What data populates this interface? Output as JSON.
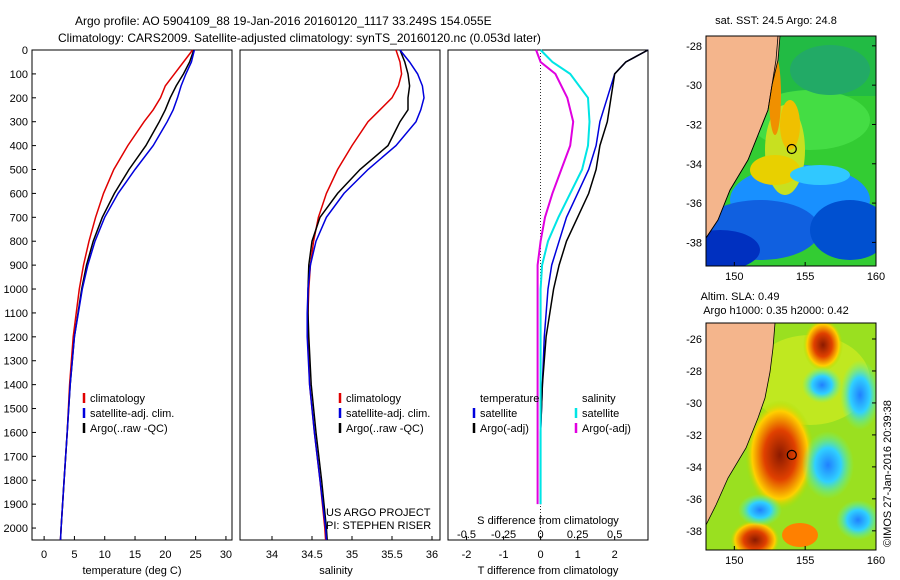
{
  "header": {
    "line1": "Argo profile: AO 5904109_88 19-Jan-2016 20160120_1117 33.249S 154.055E",
    "line2": "Climatology: CARS2009. Satellite-adjusted climatology: synTS_20160120.nc (0.053d later)"
  },
  "colors": {
    "climatology": "#e00000",
    "satellite": "#0000dd",
    "argo": "#000000",
    "s_satellite": "#00e5e5",
    "s_argo": "#e000e0",
    "land": "#f4b58c"
  },
  "chart_data": [
    {
      "type": "line",
      "xlabel": "temperature (deg C)",
      "xlim": [
        -2,
        31
      ],
      "ylim": [
        2050,
        0
      ],
      "xticks": [
        "0",
        "5",
        "10",
        "15",
        "20",
        "25",
        "30"
      ],
      "yticks": [
        "0",
        "100",
        "200",
        "300",
        "400",
        "500",
        "600",
        "700",
        "800",
        "900",
        "1000",
        "1100",
        "1200",
        "1300",
        "1400",
        "1500",
        "1600",
        "1700",
        "1800",
        "1900",
        "2000"
      ],
      "legend": [
        "climatology",
        "satellite-adj. clim.",
        "Argo(..raw -QC)"
      ],
      "series": [
        {
          "name": "climatology",
          "depth": [
            0,
            50,
            100,
            150,
            200,
            250,
            300,
            400,
            500,
            600,
            700,
            800,
            900,
            1000,
            1200,
            1400,
            1600,
            1800,
            2000,
            2050
          ],
          "values": [
            24.5,
            23.0,
            21.5,
            20.0,
            19.2,
            18.0,
            16.5,
            13.8,
            11.5,
            9.8,
            8.5,
            7.4,
            6.5,
            5.8,
            4.8,
            4.2,
            3.8,
            3.3,
            2.8,
            2.7
          ]
        },
        {
          "name": "satellite-adj. clim.",
          "depth": [
            0,
            50,
            100,
            150,
            200,
            250,
            300,
            400,
            500,
            600,
            700,
            800,
            900,
            1000,
            1200,
            1400,
            1600,
            1800,
            2000,
            2050
          ],
          "values": [
            24.8,
            24.3,
            23.4,
            22.6,
            22.0,
            21.3,
            20.3,
            18.0,
            15.0,
            12.2,
            10.0,
            8.4,
            7.2,
            6.3,
            5.0,
            4.3,
            3.8,
            3.3,
            2.8,
            2.7
          ]
        },
        {
          "name": "Argo(..raw -QC)",
          "depth": [
            0,
            50,
            100,
            150,
            200,
            250,
            300,
            400,
            500,
            600,
            700,
            800,
            900,
            1000,
            1200,
            1400,
            1600,
            1800,
            2000,
            2050
          ],
          "values": [
            24.7,
            24.0,
            23.0,
            21.8,
            20.8,
            20.0,
            19.0,
            16.8,
            14.0,
            11.6,
            9.6,
            8.1,
            7.0,
            6.2,
            5.0,
            4.3,
            3.8,
            3.3,
            2.8,
            2.7
          ]
        }
      ]
    },
    {
      "type": "line",
      "xlabel": "salinity",
      "xlim": [
        33.6,
        36.1
      ],
      "ylim": [
        2050,
        0
      ],
      "xticks": [
        "34",
        "34.5",
        "35",
        "35.5",
        "36"
      ],
      "legend": [
        "climatology",
        "satellite-adj. clim.",
        "Argo(..raw -QC)"
      ],
      "annotation": [
        "US ARGO PROJECT",
        "PI: STEPHEN RISER"
      ],
      "series": [
        {
          "name": "climatology",
          "depth": [
            0,
            50,
            100,
            150,
            200,
            250,
            300,
            400,
            500,
            600,
            700,
            800,
            900,
            1000,
            1100,
            1200,
            1400,
            1600,
            1800,
            2000,
            2050
          ],
          "values": [
            35.55,
            35.6,
            35.62,
            35.58,
            35.5,
            35.35,
            35.2,
            35.0,
            34.82,
            34.68,
            34.58,
            34.52,
            34.48,
            34.46,
            34.45,
            34.45,
            34.47,
            34.53,
            34.6,
            34.66,
            34.67
          ]
        },
        {
          "name": "satellite-adj. clim.",
          "depth": [
            0,
            50,
            100,
            150,
            200,
            250,
            300,
            400,
            500,
            600,
            700,
            800,
            900,
            1000,
            1100,
            1200,
            1400,
            1600,
            1800,
            2000,
            2050
          ],
          "values": [
            35.6,
            35.72,
            35.82,
            35.88,
            35.9,
            35.86,
            35.8,
            35.55,
            35.2,
            34.9,
            34.68,
            34.55,
            34.48,
            34.45,
            34.44,
            34.44,
            34.47,
            34.53,
            34.6,
            34.67,
            34.68
          ]
        },
        {
          "name": "Argo(..raw -QC)",
          "depth": [
            0,
            50,
            100,
            150,
            200,
            250,
            300,
            400,
            500,
            600,
            700,
            800,
            900,
            1000,
            1100,
            1200,
            1400,
            1600,
            1800,
            2000,
            2050
          ],
          "values": [
            35.6,
            35.66,
            35.7,
            35.72,
            35.7,
            35.7,
            35.6,
            35.45,
            35.1,
            34.82,
            34.6,
            34.5,
            34.46,
            34.45,
            34.45,
            34.46,
            34.49,
            34.55,
            34.62,
            34.68,
            34.69
          ]
        }
      ]
    },
    {
      "type": "line",
      "xlabel": "T difference from climatology",
      "x2label": "S difference from climatology",
      "xlim": [
        -2.5,
        2.9
      ],
      "ylim": [
        2050,
        0
      ],
      "xticks": [
        "-2",
        "-1",
        "0",
        "1",
        "2"
      ],
      "x2ticks": [
        "-0.5",
        "-0.25",
        "0",
        "0.25",
        "0.5"
      ],
      "legend": [
        "temperature",
        "satellite",
        "Argo(-adj)",
        "salinity",
        "satellite",
        "Argo(-adj)"
      ],
      "series": [
        {
          "name": "satellite",
          "depth": [
            0,
            50,
            100,
            200,
            300,
            400,
            500,
            600,
            700,
            800,
            900,
            1000,
            1200,
            1400,
            1600,
            1800,
            1900
          ],
          "values": [
            2.9,
            2.3,
            2.0,
            1.8,
            1.6,
            1.5,
            1.3,
            1.0,
            0.7,
            0.5,
            0.3,
            0.2,
            0.1,
            0.05,
            0.0,
            0.0,
            0.0
          ]
        },
        {
          "name": "Argo(-adj)",
          "depth": [
            0,
            50,
            100,
            200,
            300,
            400,
            500,
            600,
            700,
            800,
            900,
            1000,
            1200,
            1400,
            1600,
            1800,
            1900
          ],
          "values": [
            2.9,
            2.3,
            2.0,
            1.9,
            1.8,
            1.6,
            1.5,
            1.3,
            1.0,
            0.7,
            0.5,
            0.35,
            0.15,
            0.05,
            0.0,
            0.0,
            0.0
          ]
        },
        {
          "name": "satellite",
          "depth": [
            0,
            50,
            100,
            200,
            300,
            400,
            500,
            600,
            700,
            800,
            900,
            1000,
            1200,
            1400,
            1600,
            1800,
            1900
          ],
          "values": [
            0.0,
            0.08,
            0.2,
            0.32,
            0.33,
            0.32,
            0.28,
            0.2,
            0.12,
            0.05,
            0.01,
            0.0,
            0.0,
            0.0,
            0.0,
            0.0,
            0.0
          ]
        },
        {
          "name": "Argo(-adj)",
          "depth": [
            0,
            50,
            100,
            200,
            300,
            400,
            500,
            600,
            700,
            800,
            900,
            1000,
            1200,
            1400,
            1600,
            1800,
            1900
          ],
          "values": [
            -0.03,
            0.0,
            0.1,
            0.18,
            0.22,
            0.2,
            0.14,
            0.08,
            0.03,
            0.0,
            -0.02,
            -0.02,
            -0.02,
            -0.02,
            -0.02,
            -0.02,
            -0.02
          ]
        }
      ]
    },
    {
      "type": "heatmap",
      "title": "sat. SST: 24.5 Argo: 24.8",
      "xlim": [
        148,
        160
      ],
      "ylim": [
        -39.2,
        -27.5
      ],
      "xticks": [
        "150",
        "155",
        "160"
      ],
      "yticks": [
        "-28",
        "-30",
        "-32",
        "-34",
        "-36",
        "-38"
      ],
      "marker": [
        154.055,
        -33.249
      ]
    },
    {
      "type": "heatmap",
      "title": [
        "Altim. SLA: 0.49",
        "Argo h1000: 0.35 h2000: 0.42"
      ],
      "xlim": [
        148,
        160
      ],
      "ylim": [
        -39.2,
        -25
      ],
      "xticks": [
        "150",
        "155",
        "160"
      ],
      "yticks": [
        "-26",
        "-28",
        "-30",
        "-32",
        "-34",
        "-36",
        "-38"
      ],
      "marker": [
        154.055,
        -33.249
      ]
    }
  ],
  "credit": "©IMOS 27-Jan-2016 20:39:38"
}
